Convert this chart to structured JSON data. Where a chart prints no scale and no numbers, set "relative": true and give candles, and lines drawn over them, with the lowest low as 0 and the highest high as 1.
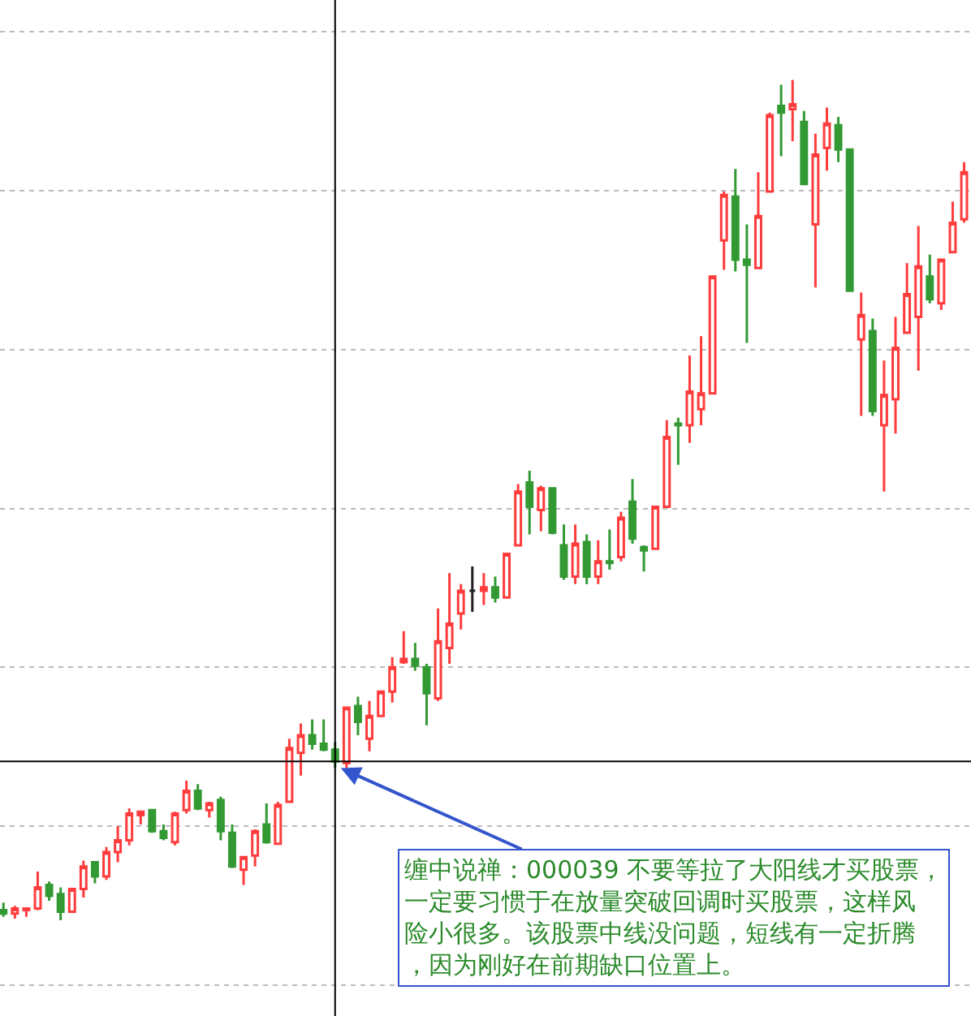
{
  "chart_data": {
    "type": "candlestick",
    "relative": true,
    "grid": "y",
    "legend": false,
    "tick_labels": false,
    "categories": [
      null,
      null,
      null,
      null,
      null,
      null,
      null,
      null,
      null,
      null,
      null,
      null,
      null,
      null,
      null,
      null,
      null,
      null,
      null,
      null,
      null,
      null,
      null,
      null,
      null,
      null,
      null,
      null,
      null,
      null,
      null,
      null,
      null,
      null,
      null,
      null,
      null,
      null,
      null,
      null,
      null,
      null,
      null,
      null,
      null,
      null,
      null,
      null,
      null,
      null,
      null,
      null,
      null,
      null,
      null,
      null,
      null,
      null,
      null,
      null,
      null,
      null,
      null,
      null,
      null,
      null,
      null,
      null,
      null,
      null,
      null,
      null,
      null,
      null,
      null,
      null,
      null,
      null,
      null,
      null,
      null,
      null,
      null,
      null,
      null
    ],
    "colors": [
      "#339933",
      "#ff3c3c",
      "#ff3c3c",
      "#ff3c3c",
      "#339933",
      "#339933",
      "#ff3c3c",
      "#ff3c3c",
      "#339933",
      "#ff3c3c",
      "#ff3c3c",
      "#ff3c3c",
      "#ff3c3c",
      "#339933",
      "#339933",
      "#ff3c3c",
      "#ff3c3c",
      "#339933",
      "#ff3c3c",
      "#339933",
      "#339933",
      "#ff3c3c",
      "#ff3c3c",
      "#339933",
      "#ff3c3c",
      "#ff3c3c",
      "#ff3c3c",
      "#339933",
      "#339933",
      "#339933",
      "#ff3c3c",
      "#339933",
      "#ff3c3c",
      "#ff3c3c",
      "#ff3c3c",
      "#ff3c3c",
      "#339933",
      "#339933",
      "#ff3c3c",
      "#ff3c3c",
      "#ff3c3c",
      "#222222",
      "#ff3c3c",
      "#339933",
      "#ff3c3c",
      "#ff3c3c",
      "#339933",
      "#ff3c3c",
      "#339933",
      "#339933",
      "#ff3c3c",
      "#339933",
      "#ff3c3c",
      "#339933",
      "#ff3c3c",
      "#339933",
      "#339933",
      "#ff3c3c",
      "#ff3c3c",
      "#339933",
      "#ff3c3c",
      "#ff3c3c",
      "#ff3c3c",
      "#ff3c3c",
      "#339933",
      "#339933",
      "#ff3c3c",
      "#ff3c3c",
      "#339933",
      "#ff3c3c",
      "#339933",
      "#ff3c3c",
      "#ff3c3c",
      "#339933",
      "#339933",
      "#ff3c3c",
      "#339933",
      "#ff3c3c",
      "#ff3c3c",
      "#ff3c3c",
      "#ff3c3c",
      "#339933",
      "#ff3c3c",
      "#ff3c3c",
      "#ff3c3c"
    ],
    "ohlc": [
      [
        0.012,
        0.021,
        0.004,
        0.008
      ],
      [
        0.008,
        0.017,
        0.002,
        0.014
      ],
      [
        0.012,
        0.015,
        0.004,
        0.014
      ],
      [
        0.014,
        0.058,
        0.012,
        0.039
      ],
      [
        0.042,
        0.046,
        0.023,
        0.029
      ],
      [
        0.031,
        0.039,
        0.0,
        0.01
      ],
      [
        0.01,
        0.037,
        0.01,
        0.037
      ],
      [
        0.037,
        0.071,
        0.027,
        0.064
      ],
      [
        0.069,
        0.069,
        0.044,
        0.052
      ],
      [
        0.052,
        0.087,
        0.048,
        0.081
      ],
      [
        0.081,
        0.112,
        0.069,
        0.095
      ],
      [
        0.095,
        0.133,
        0.089,
        0.127
      ],
      [
        0.125,
        0.129,
        0.114,
        0.129
      ],
      [
        0.131,
        0.131,
        0.104,
        0.106
      ],
      [
        0.106,
        0.114,
        0.095,
        0.098
      ],
      [
        0.093,
        0.129,
        0.089,
        0.127
      ],
      [
        0.131,
        0.166,
        0.127,
        0.154
      ],
      [
        0.154,
        0.162,
        0.131,
        0.133
      ],
      [
        0.131,
        0.141,
        0.122,
        0.139
      ],
      [
        0.143,
        0.147,
        0.095,
        0.106
      ],
      [
        0.104,
        0.114,
        0.062,
        0.064
      ],
      [
        0.06,
        0.075,
        0.042,
        0.075
      ],
      [
        0.077,
        0.108,
        0.064,
        0.106
      ],
      [
        0.114,
        0.139,
        0.091,
        0.093
      ],
      [
        0.091,
        0.141,
        0.091,
        0.137
      ],
      [
        0.141,
        0.216,
        0.141,
        0.205
      ],
      [
        0.199,
        0.234,
        0.172,
        0.22
      ],
      [
        0.22,
        0.239,
        0.203,
        0.21
      ],
      [
        0.21,
        0.239,
        0.201,
        0.203
      ],
      [
        0.203,
        0.212,
        0.181,
        0.189
      ],
      [
        0.187,
        0.253,
        0.181,
        0.253
      ],
      [
        0.255,
        0.266,
        0.22,
        0.236
      ],
      [
        0.216,
        0.261,
        0.201,
        0.243
      ],
      [
        0.243,
        0.272,
        0.243,
        0.272
      ],
      [
        0.272,
        0.313,
        0.259,
        0.301
      ],
      [
        0.307,
        0.344,
        0.305,
        0.311
      ],
      [
        0.311,
        0.33,
        0.297,
        0.303
      ],
      [
        0.301,
        0.305,
        0.232,
        0.27
      ],
      [
        0.264,
        0.371,
        0.261,
        0.332
      ],
      [
        0.324,
        0.413,
        0.305,
        0.353
      ],
      [
        0.365,
        0.4,
        0.346,
        0.392
      ],
      [
        0.392,
        0.421,
        0.367,
        0.392
      ],
      [
        0.392,
        0.413,
        0.375,
        0.396
      ],
      [
        0.396,
        0.409,
        0.378,
        0.384
      ],
      [
        0.384,
        0.436,
        0.384,
        0.436
      ],
      [
        0.446,
        0.519,
        0.446,
        0.51
      ],
      [
        0.521,
        0.535,
        0.459,
        0.492
      ],
      [
        0.488,
        0.517,
        0.463,
        0.514
      ],
      [
        0.514,
        0.514,
        0.459,
        0.461
      ],
      [
        0.446,
        0.471,
        0.405,
        0.409
      ],
      [
        0.409,
        0.471,
        0.4,
        0.448
      ],
      [
        0.45,
        0.459,
        0.4,
        0.409
      ],
      [
        0.409,
        0.452,
        0.4,
        0.427
      ],
      [
        0.427,
        0.465,
        0.417,
        0.425
      ],
      [
        0.432,
        0.486,
        0.427,
        0.479
      ],
      [
        0.498,
        0.525,
        0.448,
        0.454
      ],
      [
        0.444,
        0.446,
        0.415,
        0.44
      ],
      [
        0.442,
        0.492,
        0.442,
        0.492
      ],
      [
        0.492,
        0.595,
        0.492,
        0.575
      ],
      [
        0.591,
        0.598,
        0.542,
        0.589
      ],
      [
        0.589,
        0.672,
        0.568,
        0.629
      ],
      [
        0.608,
        0.695,
        0.589,
        0.627
      ],
      [
        0.627,
        0.766,
        0.627,
        0.766
      ],
      [
        0.809,
        0.867,
        0.774,
        0.863
      ],
      [
        0.861,
        0.894,
        0.772,
        0.786
      ],
      [
        0.786,
        0.828,
        0.687,
        0.78
      ],
      [
        0.776,
        0.89,
        0.776,
        0.838
      ],
      [
        0.867,
        0.961,
        0.867,
        0.958
      ],
      [
        0.969,
        0.994,
        0.909,
        0.961
      ],
      [
        0.965,
        1.0,
        0.927,
        0.971
      ],
      [
        0.95,
        0.963,
        0.876,
        0.876
      ],
      [
        0.828,
        0.936,
        0.753,
        0.911
      ],
      [
        0.919,
        0.967,
        0.892,
        0.948
      ],
      [
        0.946,
        0.956,
        0.902,
        0.917
      ],
      [
        0.917,
        0.917,
        0.749,
        0.749
      ],
      [
        0.691,
        0.747,
        0.6,
        0.72
      ],
      [
        0.701,
        0.716,
        0.6,
        0.606
      ],
      [
        0.589,
        0.666,
        0.51,
        0.625
      ],
      [
        0.62,
        0.718,
        0.579,
        0.681
      ],
      [
        0.699,
        0.782,
        0.699,
        0.745
      ],
      [
        0.718,
        0.826,
        0.654,
        0.778
      ],
      [
        0.766,
        0.792,
        0.734,
        0.739
      ],
      [
        0.734,
        0.786,
        0.726,
        0.786
      ],
      [
        0.795,
        0.855,
        0.795,
        0.83
      ],
      [
        0.834,
        0.902,
        0.83,
        0.89
      ]
    ],
    "annotations": [
      "缠中说禅：000039 不要等拉了大阳线才买股票，一定要习惯于在放量突破回调时买股票，这样风险小很多。该股票中线没问题，短线有一定折腾，因为刚好在前期缺口位置上。"
    ]
  }
}
